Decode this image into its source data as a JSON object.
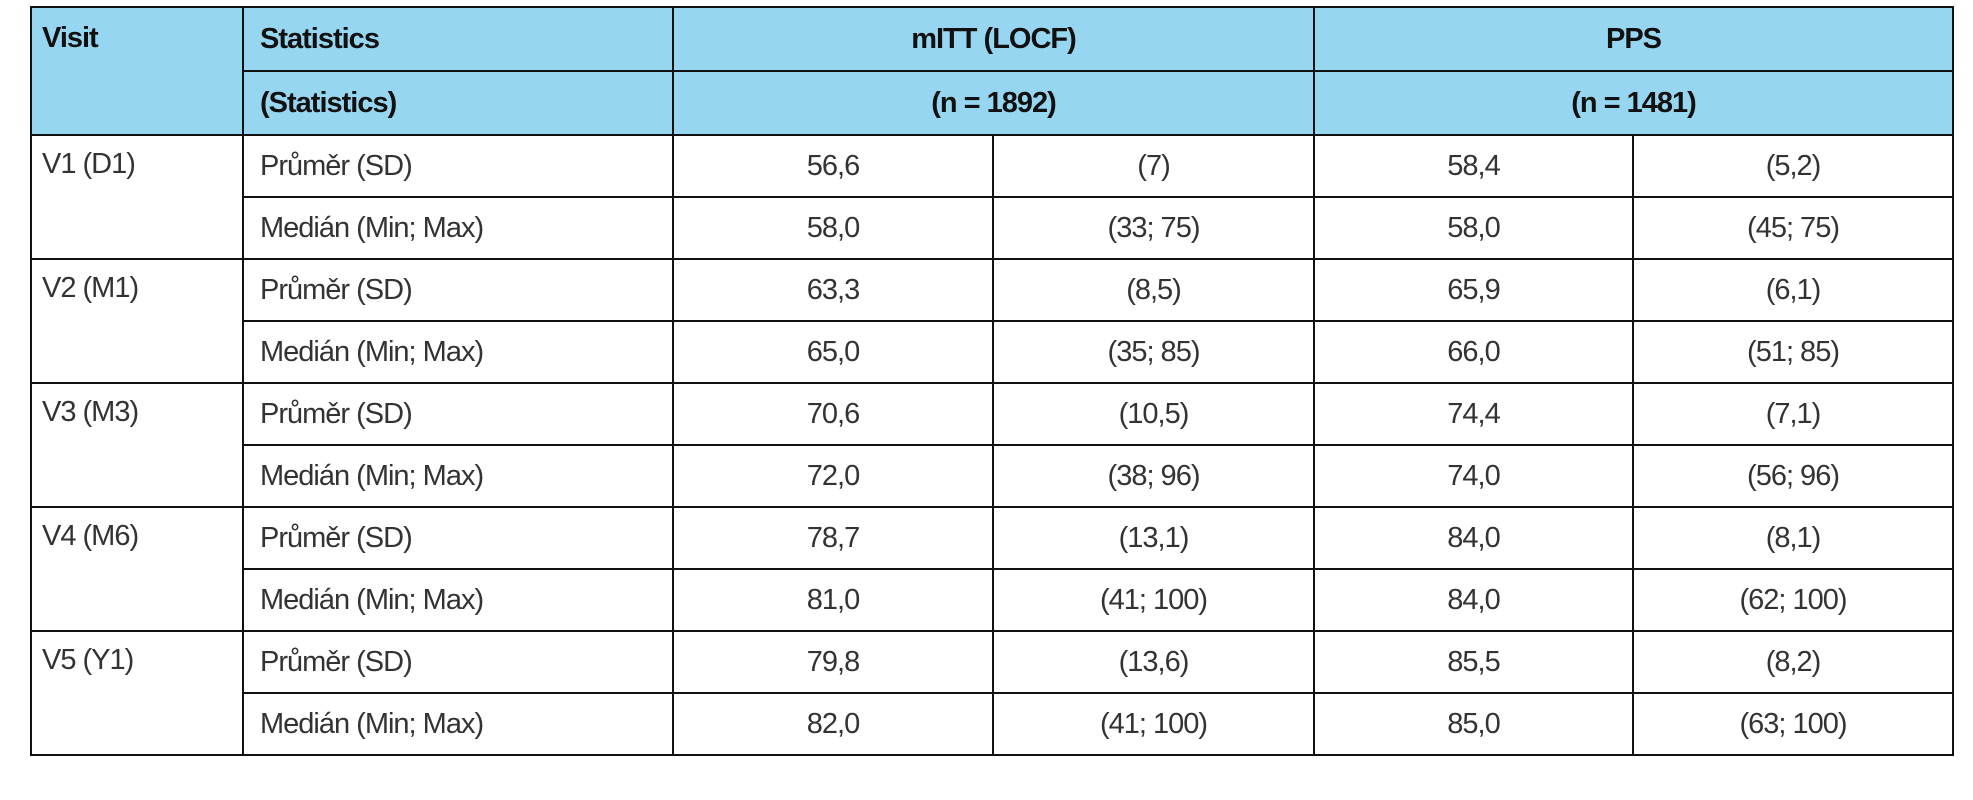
{
  "table": {
    "header": [
      [
        "Visit",
        "Statistics",
        "mITT (LOCF)",
        "PPS"
      ],
      [
        "(Statistics)",
        "(n = 1892)",
        "(n = 1481)"
      ]
    ],
    "rows": [
      {
        "visit": "V1 (D1)",
        "stats": [
          [
            "Průměr (SD)",
            "56,6",
            "(7)",
            "58,4",
            "(5,2)"
          ],
          [
            "Medián (Min; Max)",
            "58,0",
            "(33; 75)",
            "58,0",
            "(45; 75)"
          ]
        ]
      },
      {
        "visit": "V2 (M1)",
        "stats": [
          [
            "Průměr (SD)",
            "63,3",
            "(8,5)",
            "65,9",
            "(6,1)"
          ],
          [
            "Medián (Min; Max)",
            "65,0",
            "(35; 85)",
            "66,0",
            "(51; 85)"
          ]
        ]
      },
      {
        "visit": "V3 (M3)",
        "stats": [
          [
            "Průměr (SD)",
            "70,6",
            "(10,5)",
            "74,4",
            "(7,1)"
          ],
          [
            "Medián (Min; Max)",
            "72,0",
            "(38; 96)",
            "74,0",
            "(56; 96)"
          ]
        ]
      },
      {
        "visit": "V4 (M6)",
        "stats": [
          [
            "Průměr (SD)",
            "78,7",
            "(13,1)",
            "84,0",
            "(8,1)"
          ],
          [
            "Medián (Min; Max)",
            "81,0",
            "(41; 100)",
            "84,0",
            "(62; 100)"
          ]
        ]
      },
      {
        "visit": "V5 (Y1)",
        "stats": [
          [
            "Průměr (SD)",
            "79,8",
            "(13,6)",
            "85,5",
            "(8,2)"
          ],
          [
            "Medián (Min; Max)",
            "82,0",
            "(41; 100)",
            "85,0",
            "(63; 100)"
          ]
        ]
      }
    ]
  }
}
